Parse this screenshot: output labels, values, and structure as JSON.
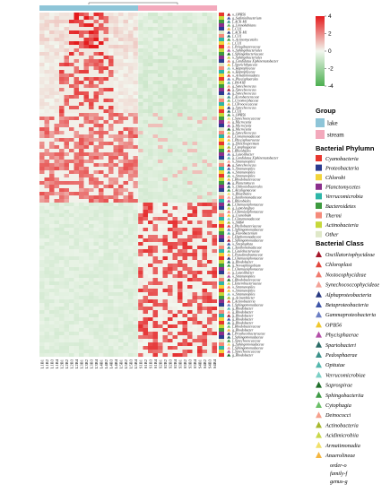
{
  "chart_data": {
    "type": "heatmap",
    "title": "",
    "xlabel": "",
    "ylabel": "",
    "color_scale": {
      "min": -4,
      "max": 4,
      "ticks": [
        4,
        2,
        0,
        -2,
        -4
      ],
      "colors": {
        "low": "#4caf50",
        "mid": "#f2f7ef",
        "high": "#e41a1c"
      }
    },
    "columns": [
      "L1B1",
      "L1B2",
      "L1B3",
      "L1B4",
      "L2B1",
      "L2B2",
      "L2B3",
      "L2B4",
      "L3B1",
      "L3B2",
      "L3B3",
      "L3B4",
      "L4B1",
      "L4B2",
      "L4B3",
      "L4B4",
      "L5B1",
      "L5B2",
      "L5B3",
      "L5B4",
      "S1B1",
      "S1B2",
      "S1B3",
      "S1B4",
      "S2B1",
      "S2B2",
      "S2B3",
      "S2B4",
      "S3B1",
      "S3B2",
      "S3B3",
      "S3B4",
      "S4B1",
      "S4B2",
      "S4B3",
      "S4B4"
    ],
    "column_groups": [
      "lake",
      "lake",
      "lake",
      "lake",
      "lake",
      "lake",
      "lake",
      "lake",
      "lake",
      "lake",
      "lake",
      "lake",
      "lake",
      "lake",
      "lake",
      "lake",
      "lake",
      "lake",
      "lake",
      "lake",
      "stream",
      "stream",
      "stream",
      "stream",
      "stream",
      "stream",
      "stream",
      "stream",
      "stream",
      "stream",
      "stream",
      "stream",
      "stream",
      "stream",
      "stream",
      "stream"
    ],
    "rows": [
      "o_OPB56",
      "g_Sediminibacterium",
      "f_ACK-M1",
      "g_Limnohabitans",
      "f_C111",
      "f_ACK-M1",
      "f_C111",
      "o_Actinomycetales",
      "f_C111",
      "f_Pelagibacteraceae",
      "o_Sphingobacteriales",
      "f_Sphingobacteriaceae",
      "o_Sphingobacteriales",
      "g_Candidatus Xiphinematobacter",
      "f_Sporichthyaceae",
      "o_Haptophyceae",
      "o_Haptophyceae",
      "o_Armatimonadetes",
      "o_Phycisphaerales",
      "f_PA-41B",
      "g_Synechococcus",
      "g_Synechococcus",
      "g_Synechococcus",
      "f_Acetobacteraceae",
      "f_Cryomorphaceae",
      "f_Chroococcaceae",
      "g_Synechococcus",
      "f_C111",
      "o_OPB56",
      "f_Synechococcaceae",
      "g_Microcystis",
      "g_Microcystis",
      "g_Microcystis",
      "g_Synechococcus",
      "f_Comamonadaceae",
      "f_Phycisphaeraceae",
      "g_Dolichospermum",
      "f_Cytophagaceae",
      "f_Rhizobiales",
      "g_Luteolibacter",
      "g_Candidatus Xiphinematobacter",
      "o_Stramenopiles",
      "g_Synechococcus",
      "o_Stramenopiles",
      "o_Stramenopiles",
      "o_Stramenopiles",
      "f_Rhodobacteraceae",
      "g_Planctomyces",
      "o_Chthoniobacterales",
      "f_Alcaligenaceae",
      "o_Rhizobiales",
      "f_Xanthomonadaceae",
      "f_Rhizobiales",
      "f_Chamaesiphonaceae",
      "g_Leptolyngbya",
      "f_Chamaesiphonaceae",
      "g_Cyanobium",
      "f_Comamonadaceae",
      "o_SM64",
      "f_Phyllobacteriaceae",
      "f_Sphingomonadaceae",
      "g_Flavobacterium",
      "f_Hyphomonadaceae",
      "f_Sphingomonadaceae",
      "o_Streptophyta",
      "f_Xanthomonadaceae",
      "f_Caulobacteraceae",
      "f_Pseudanabaenaceae",
      "f_Chamaesiphonaceae",
      "g_Rhodobacter",
      "g_Novosphingobium",
      "f_Chamaesiphonaceae",
      "g_Luteolibacter",
      "o_Stramenopiles",
      "f_Rhodobacteraceae",
      "f_Enterobacteriaceae",
      "o_Stramenopiles",
      "o_Stramenopiles",
      "o_Stramenopiles",
      "g_Acinetobacter",
      "f_Actinobacteria",
      "f_Sphingomonadaceae",
      "g_Rhodobacter",
      "g_Rhodobacter",
      "g_Rhodobacter",
      "g_Rhodobacter",
      "g_Rhodobacter",
      "f_Rhodobacteraceae",
      "g_Rhodobacter",
      "f_Prosthecobacteraceae",
      "f_Sphingomonadaceae",
      "f_Synechococcaceae",
      "g_Sphingomonadaceae",
      "f_Sphingomonadaceae",
      "f_Synechococcaceae",
      "g_Rhodobacter"
    ]
  },
  "legend": {
    "group": {
      "title": "Group",
      "items": [
        {
          "label": "lake",
          "color": "#8ec5d8"
        },
        {
          "label": "stream",
          "color": "#f3a9bc"
        }
      ]
    },
    "phylum": {
      "title": "Bacterial Phylumn",
      "items": [
        {
          "label": "Cyanobacteria",
          "color": "#e8372f"
        },
        {
          "label": "Proteobacteria",
          "color": "#2b3b90"
        },
        {
          "label": "Chlorobi",
          "color": "#f2d43a"
        },
        {
          "label": "Planctomycetes",
          "color": "#8b2f8c"
        },
        {
          "label": "Verrucomicrobia",
          "color": "#2db6a8"
        },
        {
          "label": "Bacteroidetes",
          "color": "#3d9a3f"
        },
        {
          "label": "Thermi",
          "color": "#f58a7a"
        },
        {
          "label": "Actinobacteria",
          "color": "#c6d83a"
        },
        {
          "label": "Other",
          "color": "#dfe8c8"
        }
      ]
    },
    "class": {
      "title": "Bacterial Class",
      "items": [
        {
          "label": "Oscillatoriophycideae",
          "color": "#a4162a"
        },
        {
          "label": "Chloroplast",
          "color": "#e0463c"
        },
        {
          "label": "Nostocophycideae",
          "color": "#f07a6e"
        },
        {
          "label": "Synechococcophycideae",
          "color": "#f3a297"
        },
        {
          "label": "Alphaproteobacteria",
          "color": "#273880"
        },
        {
          "label": "Betaproteobacteria",
          "color": "#3d55a8"
        },
        {
          "label": "Gammaproteobacteria",
          "color": "#6c7fc4"
        },
        {
          "label": "OPB56",
          "color": "#f0c72e"
        },
        {
          "label": "Phycisphaerae",
          "color": "#b34fa8"
        },
        {
          "label": "Spartobacteri",
          "color": "#2a6b66"
        },
        {
          "label": "Pedosphaerae",
          "color": "#3b918a"
        },
        {
          "label": "Opitutae",
          "color": "#54b7ad"
        },
        {
          "label": "Verrucomicrobiae",
          "color": "#7cd0c6"
        },
        {
          "label": "Saprospirae",
          "color": "#1f6e2a"
        },
        {
          "label": "Sphingobacteriia",
          "color": "#3e9a45"
        },
        {
          "label": "Cytophagia",
          "color": "#6bbf68"
        },
        {
          "label": "Deinococci",
          "color": "#f6a08c"
        },
        {
          "label": "Actinobacteria",
          "color": "#a7b82e"
        },
        {
          "label": "Acidimicrobiia",
          "color": "#c9d74a"
        },
        {
          "label": "Armatimonadia",
          "color": "#f1e06a"
        },
        {
          "label": "Anaerolineae",
          "color": "#f4b640"
        }
      ]
    },
    "taxonomy_key": [
      "order-o",
      "family-f",
      "genus-g"
    ]
  }
}
